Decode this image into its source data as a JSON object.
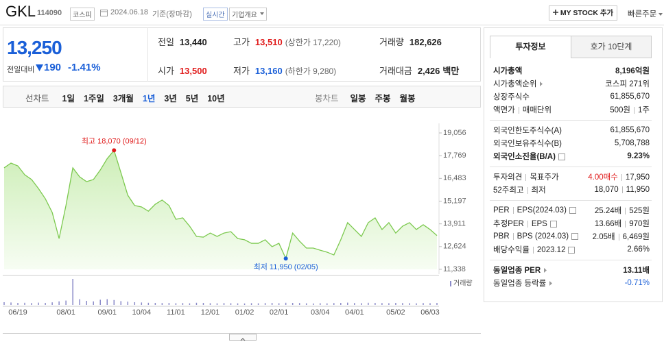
{
  "header": {
    "name": "GKL",
    "code": "114090",
    "market": "코스피",
    "date": "2024.06.18",
    "basis": "기준(장마감)",
    "realtime": "실시간",
    "overview": "기업개요",
    "my_stock": "MY STOCK 추가",
    "quick_order": "빠른주문"
  },
  "price": {
    "current": "13,250",
    "change_label": "전일대비",
    "change": "190",
    "rate": "-1.41%"
  },
  "stats": [
    {
      "label": "전일",
      "value": "13,440"
    },
    {
      "label": "고가",
      "value": "13,510",
      "color": "#e01b1b",
      "note": "(상한가 17,220)"
    },
    {
      "label": "거래량",
      "value": "182,626"
    },
    {
      "label": "시가",
      "value": "13,500",
      "color": "#e01b1b"
    },
    {
      "label": "저가",
      "value": "13,160",
      "color": "#1a5fd8",
      "note": "(하한가 9,280)"
    },
    {
      "label": "거래대금",
      "value": "2,426",
      "unit": "백만"
    }
  ],
  "chart_tabs": {
    "line_chart": "선차트",
    "periods": [
      "1일",
      "1주일",
      "3개월",
      "1년",
      "3년",
      "5년",
      "10년"
    ],
    "selected": "1년",
    "candle_chart": "봉차트",
    "candles": [
      "일봉",
      "주봉",
      "월봉"
    ]
  },
  "chart_data": {
    "type": "area",
    "color": "#7cc94f",
    "categories": [
      null,
      null,
      "06/19",
      null,
      null,
      null,
      null,
      null,
      null,
      "08/01",
      null,
      null,
      null,
      null,
      null,
      "09/01",
      null,
      null,
      null,
      null,
      "10/04",
      null,
      null,
      null,
      null,
      "11/01",
      null,
      null,
      null,
      null,
      "12/01",
      null,
      null,
      null,
      null,
      "01/02",
      null,
      null,
      null,
      null,
      "02/01",
      null,
      null,
      null,
      null,
      null,
      "03/04",
      null,
      null,
      null,
      null,
      "04/01",
      null,
      null,
      null,
      null,
      null,
      "05/02",
      null,
      null,
      null,
      null,
      "06/03",
      null
    ],
    "values": [
      17080,
      17350,
      17190,
      16690,
      16420,
      15910,
      15330,
      14560,
      13080,
      14950,
      17080,
      16570,
      16300,
      16420,
      16960,
      17600,
      18070,
      16810,
      15530,
      14950,
      14870,
      14630,
      15020,
      15260,
      14950,
      14170,
      14250,
      13780,
      13200,
      13160,
      13390,
      13200,
      13390,
      13470,
      13080,
      13010,
      12810,
      12810,
      13010,
      12620,
      12810,
      11950,
      13390,
      12930,
      12540,
      12540,
      12420,
      12310,
      12150,
      13010,
      13980,
      13590,
      13200,
      13980,
      14250,
      13590,
      13980,
      13390,
      13780,
      13980,
      13590,
      13860,
      13590,
      13250
    ],
    "ylim": [
      11338,
      19056
    ],
    "yticks": [
      {
        "value": 11338,
        "label": "11,338"
      },
      {
        "value": 12624,
        "label": "12,624"
      },
      {
        "value": 13911,
        "label": "13,911"
      },
      {
        "value": 15197,
        "label": "15,197"
      },
      {
        "value": 16483,
        "label": "16,483"
      },
      {
        "value": 17769,
        "label": "17,769"
      },
      {
        "value": 19056,
        "label": "19,056"
      }
    ],
    "grid": false,
    "max_label": "최고 18,070 (09/12)",
    "min_label": "최저 11,950 (02/05)",
    "volume": {
      "name": "거래량",
      "color": "#8a8ac8",
      "values": [
        200000,
        180000,
        150000,
        160000,
        140000,
        170000,
        150000,
        190000,
        260000,
        320000,
        1900000,
        420000,
        300000,
        260000,
        380000,
        420000,
        360000,
        280000,
        240000,
        200000,
        180000,
        160000,
        150000,
        140000,
        150000,
        130000,
        140000,
        120000,
        160000,
        150000,
        130000,
        120000,
        140000,
        130000,
        120000,
        110000,
        130000,
        120000,
        140000,
        150000,
        130000,
        160000,
        150000,
        140000,
        120000,
        110000,
        130000,
        120000,
        140000,
        150000,
        170000,
        140000,
        130000,
        160000,
        150000,
        140000,
        130000,
        150000,
        140000,
        130000,
        120000,
        140000,
        130000,
        150000
      ]
    }
  },
  "investment": {
    "tabs": [
      "투자정보",
      "호가 10단계"
    ],
    "groups": [
      [
        {
          "label": [
            "시가총액"
          ],
          "value": [
            "8,196억원"
          ],
          "bold": true
        },
        {
          "label": [
            "시가총액순위"
          ],
          "arrow": true,
          "value": [
            "코스피 271위"
          ]
        },
        {
          "label": [
            "상장주식수"
          ],
          "value": [
            "61,855,670"
          ]
        },
        {
          "label": [
            "액면가",
            "매매단위"
          ],
          "value": [
            "500원",
            "1주"
          ]
        }
      ],
      [
        {
          "label": [
            "외국인한도주식수(A)"
          ],
          "value": [
            "61,855,670"
          ]
        },
        {
          "label": [
            "외국인보유주식수(B)"
          ],
          "value": [
            "5,708,788"
          ]
        },
        {
          "label": [
            "외국인소진율(B/A)"
          ],
          "help": true,
          "bold": true,
          "value": [
            "9.23%"
          ]
        }
      ],
      [
        {
          "label": [
            "투자의견",
            "목표주가"
          ],
          "value": [
            {
              "text": "4.00매수",
              "color": "#e01b1b"
            },
            "17,950"
          ]
        },
        {
          "label": [
            "52주최고",
            "최저"
          ],
          "value": [
            "18,070",
            "11,950"
          ]
        }
      ],
      [
        {
          "label": [
            "PER",
            "EPS(2024.03)"
          ],
          "help": true,
          "value": [
            "25.24배",
            "525원"
          ]
        },
        {
          "label": [
            "추정PER",
            "EPS"
          ],
          "help": true,
          "value": [
            "13.66배",
            "970원"
          ]
        },
        {
          "label": [
            "PBR",
            "BPS (2024.03)"
          ],
          "help": true,
          "value": [
            "2.05배",
            "6,469원"
          ]
        },
        {
          "label": [
            "배당수익률",
            "2023.12"
          ],
          "help": true,
          "value": [
            "2.66%"
          ]
        }
      ],
      [
        {
          "label": [
            "동일업종 PER"
          ],
          "arrow": true,
          "bold": true,
          "value": [
            "13.11배"
          ]
        },
        {
          "label": [
            "동일업종 등락률"
          ],
          "arrow": true,
          "value": [
            {
              "text": "-0.71%",
              "color": "#1a5fd8"
            }
          ]
        }
      ]
    ]
  }
}
